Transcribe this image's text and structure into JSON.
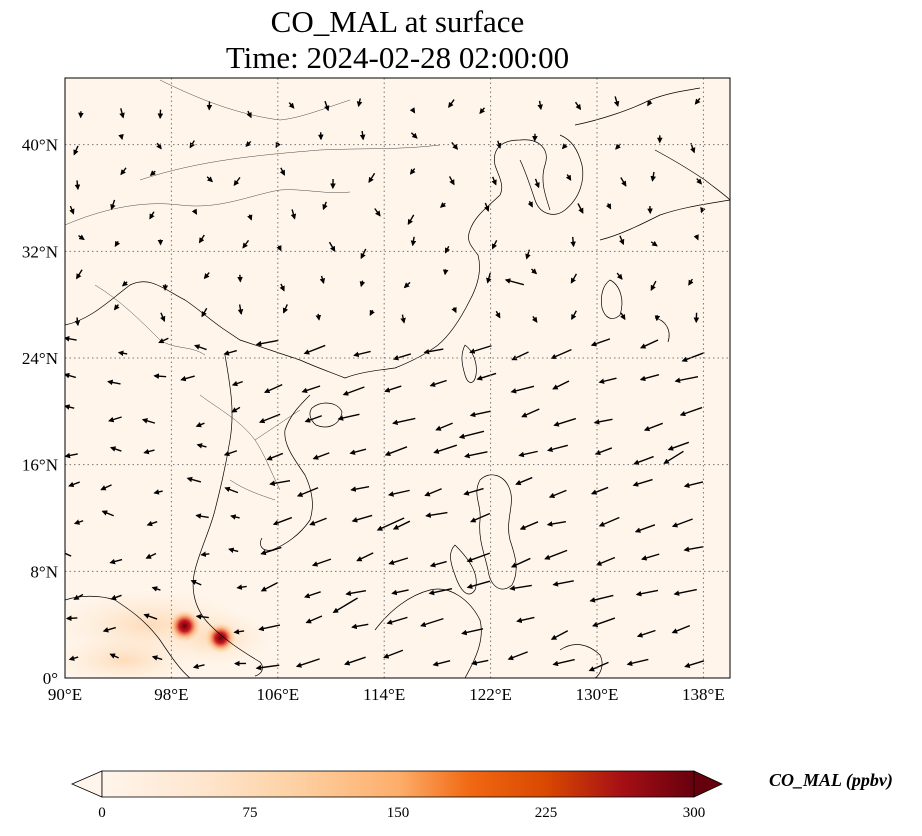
{
  "title": {
    "line1": "CO_MAL at surface",
    "line2": "Time: 2024-02-28 02:00:00"
  },
  "map": {
    "extent": {
      "lon": [
        90,
        140
      ],
      "lat": [
        0,
        45
      ]
    },
    "lon_ticks": [
      {
        "value": 90,
        "label": "90°E"
      },
      {
        "value": 98,
        "label": "98°E"
      },
      {
        "value": 106,
        "label": "106°E"
      },
      {
        "value": 114,
        "label": "114°E"
      },
      {
        "value": 122,
        "label": "122°E"
      },
      {
        "value": 130,
        "label": "130°E"
      },
      {
        "value": 138,
        "label": "138°E"
      }
    ],
    "lat_ticks": [
      {
        "value": 0,
        "label": "0°"
      },
      {
        "value": 8,
        "label": "8°N"
      },
      {
        "value": 16,
        "label": "16°N"
      },
      {
        "value": 24,
        "label": "24°N"
      },
      {
        "value": 32,
        "label": "32°N"
      },
      {
        "value": 40,
        "label": "40°N"
      }
    ],
    "background_color": "#fff5ea",
    "gridlines": "dotted",
    "hotspots": [
      {
        "lon": 99.0,
        "lat": 3.9,
        "value": 300
      },
      {
        "lon": 101.7,
        "lat": 3.0,
        "value": 280
      }
    ],
    "wind_vectors": [
      {
        "lon": 124.5,
        "lat": 29.5,
        "u": -1.5,
        "v": 0.4
      },
      {
        "lon": 121.5,
        "lat": 18.5,
        "u": -2.0,
        "v": -0.5
      },
      {
        "lon": 115.5,
        "lat": 12.0,
        "u": -2.2,
        "v": -1.0
      },
      {
        "lon": 112.0,
        "lat": 6.0,
        "u": -2.0,
        "v": -1.2
      },
      {
        "lon": 136.5,
        "lat": 17.0,
        "u": -1.6,
        "v": -1.0
      }
    ]
  },
  "colorbar": {
    "label": "CO_MAL (ppbv)",
    "range": [
      0,
      300
    ],
    "extend": "both",
    "ticks": [
      "0",
      "75",
      "150",
      "225",
      "300"
    ],
    "colors": [
      "#fff5eb",
      "#fdd0a2",
      "#fdae6b",
      "#f16913",
      "#d94801",
      "#a50f15",
      "#67000d"
    ]
  }
}
